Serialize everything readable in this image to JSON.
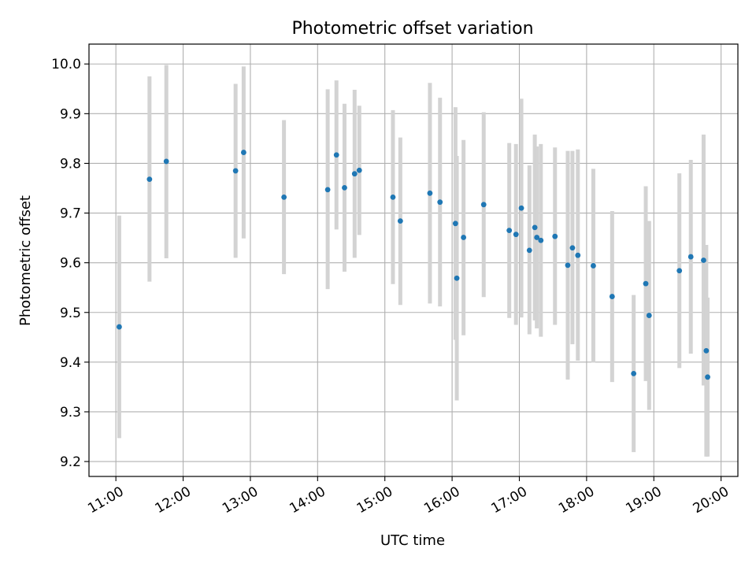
{
  "chart_data": {
    "type": "scatter",
    "title": "Photometric offset variation",
    "xlabel": "UTC time",
    "ylabel": "Photometric offset",
    "x_unit": "hour of day (UTC)",
    "xlim": [
      10.6,
      20.25
    ],
    "ylim": [
      9.17,
      10.04
    ],
    "x_ticks": [
      11,
      12,
      13,
      14,
      15,
      16,
      17,
      18,
      19,
      20
    ],
    "x_tick_labels": [
      "11:00",
      "12:00",
      "13:00",
      "14:00",
      "15:00",
      "16:00",
      "17:00",
      "18:00",
      "19:00",
      "20:00"
    ],
    "y_ticks": [
      9.2,
      9.3,
      9.4,
      9.5,
      9.6,
      9.7,
      9.8,
      9.9,
      10.0
    ],
    "y_tick_labels": [
      "9.2",
      "9.3",
      "9.4",
      "9.5",
      "9.6",
      "9.7",
      "9.8",
      "9.9",
      "10.0"
    ],
    "grid": true,
    "legend": "none",
    "marker_color": "#1f77b4",
    "errorbar_color": "#d3d3d3",
    "series": [
      {
        "points": [
          {
            "x": 11.05,
            "y": 9.471,
            "lo": 9.247,
            "hi": 9.695
          },
          {
            "x": 11.5,
            "y": 9.768,
            "lo": 9.562,
            "hi": 9.975
          },
          {
            "x": 11.75,
            "y": 9.804,
            "lo": 9.609,
            "hi": 9.998
          },
          {
            "x": 12.78,
            "y": 9.785,
            "lo": 9.61,
            "hi": 9.96
          },
          {
            "x": 12.9,
            "y": 9.822,
            "lo": 9.649,
            "hi": 9.995
          },
          {
            "x": 13.5,
            "y": 9.732,
            "lo": 9.577,
            "hi": 9.887
          },
          {
            "x": 14.15,
            "y": 9.747,
            "lo": 9.547,
            "hi": 9.949
          },
          {
            "x": 14.28,
            "y": 9.817,
            "lo": 9.667,
            "hi": 9.967
          },
          {
            "x": 14.4,
            "y": 9.751,
            "lo": 9.582,
            "hi": 9.92
          },
          {
            "x": 14.55,
            "y": 9.779,
            "lo": 9.61,
            "hi": 9.948
          },
          {
            "x": 14.62,
            "y": 9.786,
            "lo": 9.656,
            "hi": 9.916
          },
          {
            "x": 15.12,
            "y": 9.732,
            "lo": 9.557,
            "hi": 9.907
          },
          {
            "x": 15.23,
            "y": 9.684,
            "lo": 9.515,
            "hi": 9.852
          },
          {
            "x": 15.67,
            "y": 9.74,
            "lo": 9.518,
            "hi": 9.962
          },
          {
            "x": 15.82,
            "y": 9.722,
            "lo": 9.512,
            "hi": 9.932
          },
          {
            "x": 16.05,
            "y": 9.679,
            "lo": 9.445,
            "hi": 9.913
          },
          {
            "x": 16.07,
            "y": 9.569,
            "lo": 9.323,
            "hi": 9.815
          },
          {
            "x": 16.17,
            "y": 9.651,
            "lo": 9.454,
            "hi": 9.847
          },
          {
            "x": 16.47,
            "y": 9.717,
            "lo": 9.531,
            "hi": 9.903
          },
          {
            "x": 16.85,
            "y": 9.665,
            "lo": 9.489,
            "hi": 9.841
          },
          {
            "x": 16.95,
            "y": 9.657,
            "lo": 9.475,
            "hi": 9.839
          },
          {
            "x": 17.03,
            "y": 9.71,
            "lo": 9.49,
            "hi": 9.93
          },
          {
            "x": 17.15,
            "y": 9.625,
            "lo": 9.456,
            "hi": 9.796
          },
          {
            "x": 17.23,
            "y": 9.671,
            "lo": 9.484,
            "hi": 9.858
          },
          {
            "x": 17.26,
            "y": 9.651,
            "lo": 9.468,
            "hi": 9.834
          },
          {
            "x": 17.32,
            "y": 9.645,
            "lo": 9.451,
            "hi": 9.839
          },
          {
            "x": 17.53,
            "y": 9.653,
            "lo": 9.475,
            "hi": 9.832
          },
          {
            "x": 17.72,
            "y": 9.595,
            "lo": 9.365,
            "hi": 9.825
          },
          {
            "x": 17.79,
            "y": 9.63,
            "lo": 9.436,
            "hi": 9.825
          },
          {
            "x": 17.87,
            "y": 9.615,
            "lo": 9.403,
            "hi": 9.828
          },
          {
            "x": 18.1,
            "y": 9.594,
            "lo": 9.399,
            "hi": 9.789
          },
          {
            "x": 18.38,
            "y": 9.532,
            "lo": 9.36,
            "hi": 9.704
          },
          {
            "x": 18.7,
            "y": 9.377,
            "lo": 9.219,
            "hi": 9.535
          },
          {
            "x": 18.88,
            "y": 9.558,
            "lo": 9.362,
            "hi": 9.754
          },
          {
            "x": 18.93,
            "y": 9.494,
            "lo": 9.304,
            "hi": 9.684
          },
          {
            "x": 19.38,
            "y": 9.584,
            "lo": 9.388,
            "hi": 9.78
          },
          {
            "x": 19.55,
            "y": 9.612,
            "lo": 9.417,
            "hi": 9.807
          },
          {
            "x": 19.74,
            "y": 9.605,
            "lo": 9.353,
            "hi": 9.858
          },
          {
            "x": 19.78,
            "y": 9.423,
            "lo": 9.21,
            "hi": 9.636
          },
          {
            "x": 19.8,
            "y": 9.37,
            "lo": 9.21,
            "hi": 9.53
          }
        ]
      }
    ]
  }
}
